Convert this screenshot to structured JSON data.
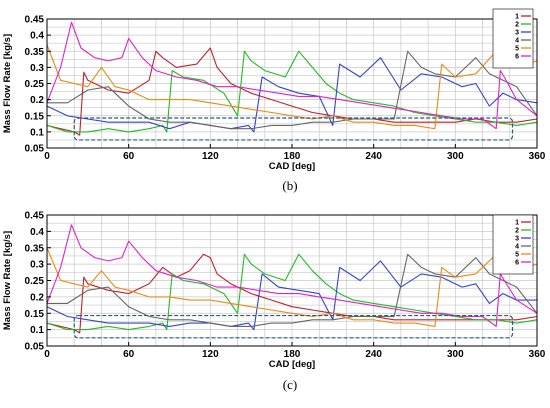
{
  "chart_data": [
    {
      "type": "line",
      "caption": "(b)",
      "xlabel": "CAD [deg]",
      "ylabel": "Mass Flow Rate [kg/s]",
      "xlim": [
        0,
        360
      ],
      "ylim": [
        0.05,
        0.45
      ],
      "xticks": [
        "0",
        "60",
        "120",
        "180",
        "240",
        "300",
        "360"
      ],
      "yticks": [
        "0.05",
        "0.1",
        "0.15",
        "0.2",
        "0.25",
        "0.3",
        "0.35",
        "0.4",
        "0.45"
      ],
      "grid": true,
      "legend_position": "top-right",
      "highlight_box": {
        "x": [
          20,
          342
        ],
        "y": [
          0.075,
          0.143
        ]
      },
      "series": [
        {
          "name": "1",
          "color": "#c0202a",
          "x": [
            0,
            10,
            20,
            24,
            27,
            30,
            45,
            60,
            75,
            80,
            85,
            95,
            110,
            120,
            125,
            135,
            150,
            165,
            180,
            195,
            210,
            225,
            240,
            255,
            270,
            285,
            300,
            315,
            330,
            345,
            360
          ],
          "y": [
            0.12,
            0.11,
            0.1,
            0.09,
            0.285,
            0.26,
            0.23,
            0.22,
            0.26,
            0.35,
            0.33,
            0.3,
            0.31,
            0.36,
            0.3,
            0.25,
            0.22,
            0.2,
            0.18,
            0.16,
            0.15,
            0.14,
            0.14,
            0.13,
            0.13,
            0.13,
            0.13,
            0.14,
            0.13,
            0.13,
            0.14
          ]
        },
        {
          "name": "2",
          "color": "#22bb22",
          "x": [
            0,
            15,
            30,
            45,
            60,
            75,
            85,
            88,
            92,
            100,
            115,
            130,
            140,
            145,
            150,
            160,
            175,
            185,
            195,
            205,
            215,
            225,
            240,
            255,
            270,
            285,
            300,
            315,
            330,
            345,
            360
          ],
          "y": [
            0.12,
            0.1,
            0.1,
            0.11,
            0.1,
            0.11,
            0.12,
            0.1,
            0.29,
            0.27,
            0.26,
            0.22,
            0.15,
            0.35,
            0.32,
            0.29,
            0.27,
            0.35,
            0.3,
            0.25,
            0.22,
            0.2,
            0.19,
            0.18,
            0.16,
            0.15,
            0.14,
            0.13,
            0.13,
            0.12,
            0.13
          ]
        },
        {
          "name": "3",
          "color": "#3344cc",
          "x": [
            0,
            15,
            30,
            45,
            60,
            75,
            90,
            105,
            120,
            135,
            148,
            152,
            158,
            170,
            185,
            200,
            210,
            215,
            230,
            245,
            260,
            275,
            290,
            305,
            315,
            325,
            335,
            345,
            360
          ],
          "y": [
            0.18,
            0.15,
            0.14,
            0.13,
            0.13,
            0.13,
            0.11,
            0.13,
            0.12,
            0.11,
            0.12,
            0.1,
            0.27,
            0.24,
            0.22,
            0.21,
            0.12,
            0.31,
            0.27,
            0.33,
            0.23,
            0.28,
            0.27,
            0.24,
            0.25,
            0.18,
            0.22,
            0.2,
            0.19
          ]
        },
        {
          "name": "4",
          "color": "#666666",
          "x": [
            0,
            15,
            30,
            45,
            60,
            75,
            90,
            105,
            120,
            135,
            150,
            165,
            180,
            195,
            210,
            225,
            240,
            255,
            265,
            275,
            285,
            300,
            315,
            325,
            335,
            345,
            360
          ],
          "y": [
            0.19,
            0.19,
            0.23,
            0.24,
            0.18,
            0.14,
            0.13,
            0.13,
            0.12,
            0.11,
            0.11,
            0.12,
            0.12,
            0.13,
            0.13,
            0.14,
            0.14,
            0.14,
            0.35,
            0.3,
            0.28,
            0.27,
            0.33,
            0.28,
            0.26,
            0.24,
            0.15
          ]
        },
        {
          "name": "5",
          "color": "#ee8811",
          "x": [
            0,
            10,
            20,
            30,
            40,
            50,
            60,
            75,
            90,
            105,
            120,
            135,
            150,
            165,
            180,
            195,
            210,
            225,
            240,
            255,
            270,
            285,
            290,
            300,
            315,
            330,
            345,
            360
          ],
          "y": [
            0.37,
            0.26,
            0.25,
            0.24,
            0.3,
            0.24,
            0.23,
            0.2,
            0.2,
            0.2,
            0.19,
            0.18,
            0.17,
            0.16,
            0.15,
            0.14,
            0.15,
            0.13,
            0.13,
            0.12,
            0.12,
            0.11,
            0.31,
            0.27,
            0.28,
            0.35,
            0.3,
            0.32
          ]
        },
        {
          "name": "6",
          "color": "#dd22cc",
          "x": [
            0,
            10,
            18,
            25,
            35,
            45,
            55,
            60,
            70,
            80,
            95,
            110,
            125,
            140,
            155,
            170,
            185,
            200,
            215,
            230,
            245,
            260,
            275,
            290,
            305,
            320,
            330,
            333,
            336,
            345,
            360
          ],
          "y": [
            0.19,
            0.3,
            0.44,
            0.36,
            0.33,
            0.32,
            0.33,
            0.39,
            0.33,
            0.29,
            0.27,
            0.26,
            0.24,
            0.24,
            0.23,
            0.22,
            0.21,
            0.21,
            0.2,
            0.19,
            0.18,
            0.17,
            0.16,
            0.15,
            0.14,
            0.14,
            0.11,
            0.29,
            0.27,
            0.2,
            0.15
          ]
        }
      ]
    },
    {
      "type": "line",
      "caption": "(c)",
      "xlabel": "CAD [deg]",
      "ylabel": "Mass Flow Rate [kg/s]",
      "xlim": [
        0,
        360
      ],
      "ylim": [
        0.05,
        0.45
      ],
      "xticks": [
        "0",
        "60",
        "120",
        "180",
        "240",
        "300",
        "360"
      ],
      "yticks": [
        "0.05",
        "0.1",
        "0.15",
        "0.2",
        "0.25",
        "0.3",
        "0.35",
        "0.4",
        "0.45"
      ],
      "grid": true,
      "legend_position": "top-right",
      "highlight_box": {
        "x": [
          20,
          342
        ],
        "y": [
          0.075,
          0.143
        ]
      },
      "series": [
        {
          "name": "1",
          "color": "#c0202a",
          "x": [
            0,
            10,
            20,
            24,
            27,
            30,
            45,
            60,
            75,
            85,
            95,
            105,
            115,
            120,
            125,
            135,
            150,
            165,
            180,
            195,
            210,
            225,
            240,
            255,
            270,
            285,
            300,
            315,
            330,
            345,
            360
          ],
          "y": [
            0.12,
            0.11,
            0.1,
            0.09,
            0.26,
            0.24,
            0.22,
            0.21,
            0.24,
            0.29,
            0.26,
            0.28,
            0.33,
            0.32,
            0.27,
            0.24,
            0.21,
            0.19,
            0.17,
            0.16,
            0.15,
            0.14,
            0.14,
            0.13,
            0.13,
            0.13,
            0.13,
            0.13,
            0.13,
            0.13,
            0.14
          ]
        },
        {
          "name": "2",
          "color": "#22bb22",
          "x": [
            0,
            15,
            30,
            45,
            60,
            75,
            85,
            88,
            92,
            100,
            115,
            130,
            140,
            145,
            150,
            160,
            175,
            185,
            195,
            205,
            215,
            225,
            240,
            255,
            270,
            285,
            300,
            315,
            330,
            345,
            360
          ],
          "y": [
            0.12,
            0.1,
            0.1,
            0.11,
            0.1,
            0.11,
            0.12,
            0.1,
            0.27,
            0.25,
            0.24,
            0.21,
            0.15,
            0.33,
            0.3,
            0.27,
            0.25,
            0.33,
            0.28,
            0.24,
            0.21,
            0.19,
            0.18,
            0.17,
            0.16,
            0.15,
            0.14,
            0.13,
            0.13,
            0.12,
            0.13
          ]
        },
        {
          "name": "3",
          "color": "#3344cc",
          "x": [
            0,
            15,
            30,
            45,
            60,
            75,
            90,
            105,
            120,
            135,
            148,
            152,
            158,
            170,
            185,
            200,
            210,
            215,
            230,
            245,
            260,
            275,
            290,
            305,
            315,
            325,
            335,
            345,
            360
          ],
          "y": [
            0.17,
            0.14,
            0.13,
            0.12,
            0.12,
            0.12,
            0.11,
            0.12,
            0.12,
            0.11,
            0.12,
            0.1,
            0.27,
            0.23,
            0.22,
            0.21,
            0.13,
            0.29,
            0.25,
            0.31,
            0.23,
            0.27,
            0.26,
            0.23,
            0.24,
            0.18,
            0.21,
            0.19,
            0.19
          ]
        },
        {
          "name": "4",
          "color": "#666666",
          "x": [
            0,
            15,
            30,
            45,
            60,
            75,
            90,
            105,
            120,
            135,
            150,
            165,
            180,
            195,
            210,
            225,
            240,
            255,
            265,
            275,
            285,
            300,
            315,
            325,
            335,
            345,
            360
          ],
          "y": [
            0.18,
            0.18,
            0.22,
            0.23,
            0.17,
            0.14,
            0.13,
            0.13,
            0.12,
            0.11,
            0.11,
            0.12,
            0.12,
            0.13,
            0.13,
            0.14,
            0.14,
            0.14,
            0.33,
            0.29,
            0.27,
            0.26,
            0.32,
            0.27,
            0.25,
            0.23,
            0.15
          ]
        },
        {
          "name": "5",
          "color": "#ee8811",
          "x": [
            0,
            10,
            20,
            30,
            40,
            50,
            60,
            75,
            90,
            105,
            120,
            135,
            150,
            165,
            180,
            195,
            210,
            225,
            240,
            255,
            270,
            285,
            290,
            300,
            315,
            330,
            345,
            360
          ],
          "y": [
            0.35,
            0.25,
            0.24,
            0.23,
            0.28,
            0.23,
            0.22,
            0.2,
            0.2,
            0.19,
            0.19,
            0.18,
            0.17,
            0.16,
            0.15,
            0.14,
            0.15,
            0.13,
            0.13,
            0.12,
            0.12,
            0.11,
            0.29,
            0.26,
            0.27,
            0.33,
            0.28,
            0.3
          ]
        },
        {
          "name": "6",
          "color": "#dd22cc",
          "x": [
            0,
            10,
            18,
            25,
            35,
            45,
            55,
            60,
            70,
            80,
            95,
            110,
            125,
            140,
            155,
            170,
            185,
            200,
            215,
            230,
            245,
            260,
            275,
            290,
            305,
            320,
            330,
            333,
            336,
            345,
            360
          ],
          "y": [
            0.18,
            0.29,
            0.42,
            0.35,
            0.32,
            0.31,
            0.32,
            0.37,
            0.32,
            0.28,
            0.26,
            0.25,
            0.23,
            0.23,
            0.22,
            0.21,
            0.21,
            0.2,
            0.19,
            0.18,
            0.17,
            0.16,
            0.15,
            0.15,
            0.14,
            0.14,
            0.11,
            0.27,
            0.25,
            0.19,
            0.15
          ]
        }
      ]
    }
  ]
}
